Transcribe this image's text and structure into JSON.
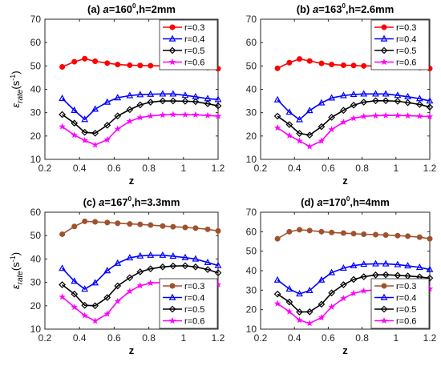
{
  "chart_data": [
    {
      "type": "line",
      "title": "(a) a=160⁰,h=2mm",
      "title_parts": {
        "prefix": "(a) ",
        "var": "a",
        "eq": "=160",
        "sup": "0",
        "rest": ",h=2mm"
      },
      "xlabel": "z",
      "ylabel": "ε rate (s⁻¹)",
      "xlim": [
        0.2,
        1.2
      ],
      "ylim": [
        10,
        70
      ],
      "xticks": [
        "0.2",
        "0.4",
        "0.6",
        "0.8",
        "1",
        "1.2"
      ],
      "yticks": [
        "10",
        "20",
        "30",
        "40",
        "50",
        "60",
        "70"
      ],
      "legend_position": "top-right",
      "x": [
        0.3,
        0.37,
        0.43,
        0.49,
        0.56,
        0.62,
        0.69,
        0.75,
        0.81,
        0.88,
        0.94,
        1.01,
        1.07,
        1.14,
        1.2
      ],
      "series": [
        {
          "name": "r=0.3",
          "color": "#ff0000",
          "marker": "circle",
          "values": [
            49.6,
            51.8,
            53.1,
            52.0,
            51.2,
            50.6,
            50.3,
            50.2,
            50.1,
            50.0,
            50.0,
            49.9,
            49.7,
            49.3,
            48.8
          ]
        },
        {
          "name": "r=0.4",
          "color": "#0000ff",
          "marker": "triangle",
          "values": [
            36.1,
            31.0,
            27.1,
            31.5,
            34.5,
            36.4,
            37.3,
            37.7,
            37.9,
            38.0,
            38.0,
            37.4,
            36.8,
            36.0,
            35.6
          ]
        },
        {
          "name": "r=0.5",
          "color": "#000000",
          "marker": "diamond",
          "values": [
            29.2,
            25.5,
            21.6,
            21.2,
            24.6,
            28.6,
            31.3,
            33.3,
            34.5,
            35.0,
            35.0,
            34.9,
            34.7,
            33.8,
            32.9
          ]
        },
        {
          "name": "r=0.6",
          "color": "#ff00ff",
          "marker": "star",
          "values": [
            24.0,
            20.4,
            18.1,
            16.2,
            18.4,
            23.0,
            26.3,
            27.9,
            28.6,
            29.0,
            29.2,
            29.1,
            29.1,
            28.8,
            28.5
          ]
        }
      ]
    },
    {
      "type": "line",
      "title": "(b) a=163⁰,h=2.6mm",
      "title_parts": {
        "prefix": "(b) ",
        "var": "a",
        "eq": "=163",
        "sup": "0",
        "rest": ",h=2.6mm"
      },
      "xlabel": "z",
      "ylabel": "",
      "xlim": [
        0.2,
        1.2
      ],
      "ylim": [
        10,
        70
      ],
      "xticks": [
        "0.2",
        "0.4",
        "0.6",
        "0.8",
        "1",
        "1.2"
      ],
      "yticks": [
        "10",
        "20",
        "30",
        "40",
        "50",
        "60",
        "70"
      ],
      "legend_position": "top-right",
      "x": [
        0.3,
        0.37,
        0.43,
        0.49,
        0.56,
        0.62,
        0.69,
        0.75,
        0.81,
        0.88,
        0.94,
        1.01,
        1.07,
        1.14,
        1.2
      ],
      "series": [
        {
          "name": "r=0.3",
          "color": "#ff0000",
          "marker": "circle",
          "values": [
            49.0,
            51.4,
            53.0,
            52.1,
            51.1,
            50.6,
            50.3,
            50.2,
            50.0,
            50.0,
            49.9,
            49.8,
            49.6,
            49.3,
            48.9
          ]
        },
        {
          "name": "r=0.4",
          "color": "#0000ff",
          "marker": "triangle",
          "values": [
            35.5,
            30.2,
            27.0,
            30.9,
            34.2,
            36.3,
            37.3,
            37.8,
            38.0,
            38.0,
            38.0,
            37.4,
            36.8,
            36.0,
            35.0
          ]
        },
        {
          "name": "r=0.5",
          "color": "#000000",
          "marker": "diamond",
          "values": [
            28.5,
            24.9,
            21.1,
            20.4,
            24.0,
            28.0,
            31.0,
            33.2,
            34.5,
            35.1,
            35.1,
            34.9,
            34.3,
            33.5,
            32.4
          ]
        },
        {
          "name": "r=0.6",
          "color": "#ff00ff",
          "marker": "star",
          "values": [
            23.5,
            20.2,
            17.9,
            15.5,
            17.9,
            22.8,
            25.9,
            27.6,
            28.4,
            28.7,
            28.8,
            28.8,
            28.7,
            28.5,
            28.3
          ]
        }
      ]
    },
    {
      "type": "line",
      "title": "(c) a=167⁰,h=3.3mm",
      "title_parts": {
        "prefix": "(c) ",
        "var": "a",
        "eq": "=167",
        "sup": "0",
        "rest": ",h=3.3mm"
      },
      "xlabel": "z",
      "ylabel": "ε rate (s⁻¹)",
      "xlim": [
        0.2,
        1.2
      ],
      "ylim": [
        10,
        60
      ],
      "xticks": [
        "0.2",
        "0.4",
        "0.6",
        "0.8",
        "1",
        "1.2"
      ],
      "yticks": [
        "10",
        "20",
        "30",
        "40",
        "50",
        "60"
      ],
      "legend_position": "bottom-right",
      "x": [
        0.3,
        0.37,
        0.43,
        0.49,
        0.56,
        0.62,
        0.69,
        0.75,
        0.81,
        0.88,
        0.94,
        1.01,
        1.07,
        1.14,
        1.2
      ],
      "series": [
        {
          "name": "r=0.3",
          "color": "#a0522d",
          "marker": "circle",
          "values": [
            50.6,
            53.9,
            56.1,
            55.9,
            55.6,
            55.3,
            55.0,
            54.8,
            54.5,
            54.1,
            53.8,
            53.5,
            53.2,
            52.7,
            52.0
          ]
        },
        {
          "name": "r=0.4",
          "color": "#0000ff",
          "marker": "triangle",
          "values": [
            36.0,
            30.5,
            27.1,
            29.8,
            35.0,
            38.2,
            40.5,
            41.3,
            41.6,
            41.6,
            41.2,
            40.6,
            40.0,
            38.5,
            37.2
          ]
        },
        {
          "name": "r=0.5",
          "color": "#000000",
          "marker": "diamond",
          "values": [
            29.0,
            25.0,
            20.2,
            20.0,
            23.5,
            28.5,
            32.0,
            34.5,
            35.8,
            36.6,
            37.0,
            37.1,
            36.6,
            35.5,
            34.1
          ]
        },
        {
          "name": "r=0.6",
          "color": "#ff00ff",
          "marker": "star",
          "values": [
            23.8,
            19.4,
            15.8,
            13.5,
            16.5,
            21.9,
            26.2,
            28.6,
            29.7,
            30.0,
            30.0,
            29.9,
            29.6,
            29.4,
            29.1
          ]
        }
      ]
    },
    {
      "type": "line",
      "title": "(d) a=170⁰,h=4mm",
      "title_parts": {
        "prefix": "(d) ",
        "var": "a",
        "eq": "=170",
        "sup": "0",
        "rest": ",h=4mm"
      },
      "xlabel": "z",
      "ylabel": "",
      "xlim": [
        0.2,
        1.2
      ],
      "ylim": [
        10,
        70
      ],
      "xticks": [
        "0.2",
        "0.4",
        "0.6",
        "0.8",
        "1",
        "1.2"
      ],
      "yticks": [
        "10",
        "20",
        "30",
        "40",
        "50",
        "60",
        "70"
      ],
      "legend_position": "bottom-right",
      "x": [
        0.3,
        0.37,
        0.43,
        0.49,
        0.56,
        0.62,
        0.69,
        0.75,
        0.81,
        0.88,
        0.94,
        1.01,
        1.07,
        1.14,
        1.2
      ],
      "series": [
        {
          "name": "r=0.3",
          "color": "#a0522d",
          "marker": "circle",
          "values": [
            56.4,
            60.0,
            61.0,
            60.6,
            60.0,
            59.6,
            59.3,
            59.0,
            58.7,
            58.5,
            58.3,
            58.0,
            57.7,
            57.2,
            56.4
          ]
        },
        {
          "name": "r=0.4",
          "color": "#0000ff",
          "marker": "triangle",
          "values": [
            35.2,
            30.6,
            28.1,
            29.8,
            35.2,
            39.0,
            41.3,
            42.6,
            43.3,
            43.5,
            43.5,
            43.1,
            42.5,
            41.7,
            40.6
          ]
        },
        {
          "name": "r=0.5",
          "color": "#000000",
          "marker": "diamond",
          "values": [
            28.0,
            23.9,
            18.8,
            18.9,
            22.8,
            28.6,
            32.8,
            35.5,
            36.9,
            37.8,
            37.9,
            37.6,
            37.3,
            36.8,
            36.2
          ]
        },
        {
          "name": "r=0.6",
          "color": "#ff00ff",
          "marker": "star",
          "values": [
            23.1,
            19.0,
            14.6,
            13.0,
            15.9,
            21.4,
            25.8,
            28.4,
            29.6,
            30.2,
            30.5,
            30.6,
            30.7,
            30.7,
            30.7
          ]
        }
      ]
    }
  ]
}
